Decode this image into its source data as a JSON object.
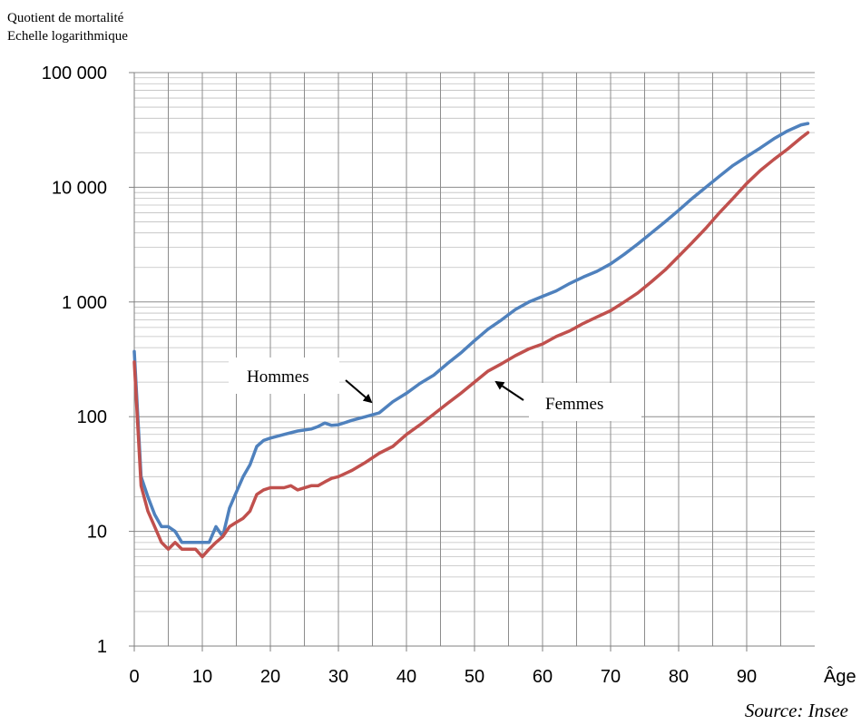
{
  "chart_data": {
    "type": "line",
    "ylabel_lines": [
      "Quotient de mortalité",
      "Echelle logarithmique"
    ],
    "xlabel": "Âge",
    "source": "Source: Insee",
    "y_scale": "log",
    "ylim": [
      1,
      100000
    ],
    "xlim": [
      0,
      100
    ],
    "y_ticks": [
      {
        "value": 1,
        "label": "1"
      },
      {
        "value": 10,
        "label": "10"
      },
      {
        "value": 100,
        "label": "100"
      },
      {
        "value": 1000,
        "label": "1 000"
      },
      {
        "value": 10000,
        "label": "10 000"
      },
      {
        "value": 100000,
        "label": "100 000"
      }
    ],
    "x_ticks": [
      0,
      10,
      20,
      30,
      40,
      50,
      60,
      70,
      80,
      90
    ],
    "grid": true,
    "series": [
      {
        "name": "Hommes",
        "color": "#4f81bd",
        "x": [
          0,
          1,
          2,
          3,
          4,
          5,
          6,
          7,
          8,
          9,
          10,
          11,
          12,
          13,
          14,
          15,
          16,
          17,
          18,
          19,
          20,
          22,
          24,
          26,
          27,
          28,
          29,
          30,
          32,
          34,
          36,
          38,
          40,
          42,
          44,
          46,
          48,
          50,
          52,
          54,
          56,
          58,
          60,
          62,
          64,
          66,
          68,
          70,
          72,
          74,
          76,
          78,
          80,
          82,
          84,
          86,
          88,
          90,
          92,
          94,
          96,
          98,
          99
        ],
        "values": [
          370,
          30,
          20,
          14,
          11,
          11,
          10,
          8,
          8,
          8,
          8,
          8,
          11,
          9,
          16,
          22,
          30,
          38,
          55,
          62,
          65,
          70,
          75,
          78,
          82,
          88,
          84,
          85,
          93,
          100,
          108,
          135,
          160,
          195,
          230,
          290,
          360,
          460,
          580,
          700,
          860,
          1000,
          1120,
          1250,
          1450,
          1650,
          1850,
          2150,
          2600,
          3200,
          4000,
          5000,
          6300,
          8000,
          10000,
          12500,
          15500,
          18500,
          22000,
          26500,
          31000,
          35000,
          36000
        ]
      },
      {
        "name": "Femmes",
        "color": "#c0504d",
        "x": [
          0,
          1,
          2,
          3,
          4,
          5,
          6,
          7,
          8,
          9,
          10,
          11,
          12,
          13,
          14,
          15,
          16,
          17,
          18,
          19,
          20,
          22,
          23,
          24,
          26,
          27,
          28,
          29,
          30,
          32,
          34,
          36,
          38,
          40,
          42,
          44,
          46,
          48,
          50,
          52,
          54,
          56,
          58,
          60,
          62,
          64,
          66,
          68,
          70,
          72,
          74,
          76,
          78,
          80,
          82,
          84,
          86,
          88,
          90,
          92,
          94,
          96,
          98,
          99
        ],
        "values": [
          300,
          25,
          15,
          11,
          8,
          7,
          8,
          7,
          7,
          7,
          6,
          7,
          8,
          9,
          11,
          12,
          13,
          15,
          21,
          23,
          24,
          24,
          25,
          23,
          25,
          25,
          27,
          29,
          30,
          34,
          40,
          48,
          55,
          70,
          85,
          105,
          130,
          160,
          200,
          250,
          290,
          340,
          390,
          430,
          500,
          560,
          650,
          740,
          840,
          1000,
          1200,
          1500,
          1900,
          2500,
          3300,
          4400,
          6000,
          8000,
          10800,
          14000,
          17500,
          21500,
          27000,
          30000
        ]
      }
    ],
    "annotations": [
      {
        "text": "Hommes",
        "points_to_series": "Hommes"
      },
      {
        "text": "Femmes",
        "points_to_series": "Femmes"
      }
    ]
  }
}
